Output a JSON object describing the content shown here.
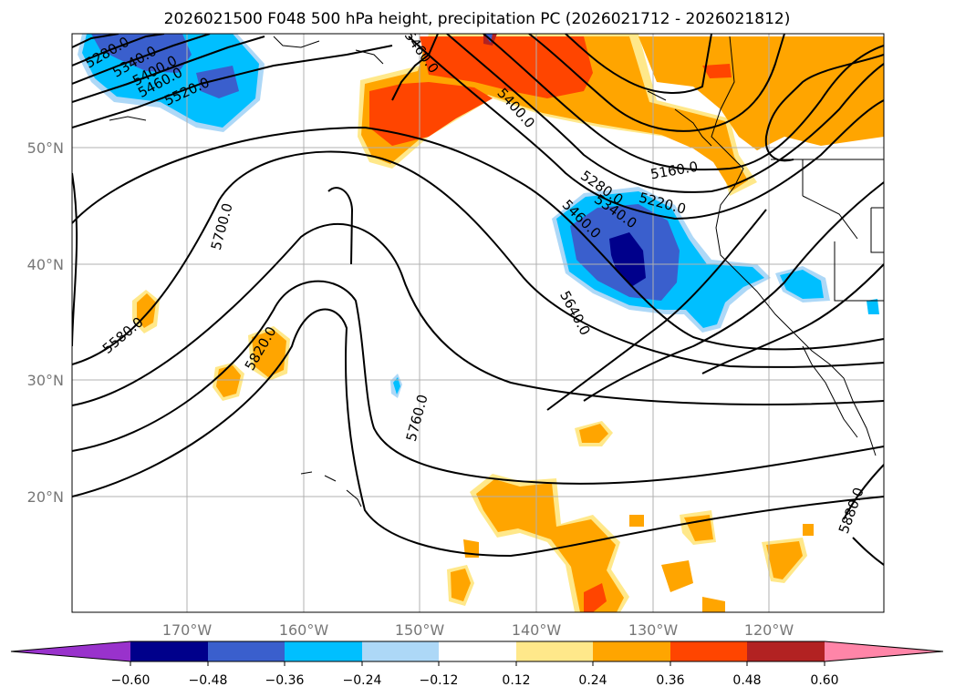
{
  "title": "2026021500 F048 500 hPa height, precipitation PC (2026021712 - 2026021812)",
  "lon_labels": [
    "170°W",
    "160°W",
    "150°W",
    "140°W",
    "130°W",
    "120°W"
  ],
  "lat_labels": [
    "50°N",
    "40°N",
    "30°N",
    "20°N"
  ],
  "colorbar": {
    "ticks": [
      "−0.60",
      "−0.48",
      "−0.36",
      "−0.24",
      "−0.12",
      "0.12",
      "0.24",
      "0.36",
      "0.48",
      "0.60"
    ],
    "colors": [
      "#9932cc",
      "#00008b",
      "#3a5fcd",
      "#00bfff",
      "#add8f7",
      "#ffffff",
      "#ffe88a",
      "#ffa500",
      "#ff4500",
      "#b22222",
      "#ff85a8"
    ]
  },
  "contour_labels": [
    "5280.0",
    "5340.0",
    "5400.0",
    "5460.0",
    "5520.0",
    "5580.0",
    "5700.0",
    "5820.0",
    "5760.0",
    "5640.0",
    "5400.0",
    "5280.0",
    "5340.0",
    "5460.0",
    "5220.0",
    "5160.0",
    "5880.0",
    "5460.0"
  ]
}
